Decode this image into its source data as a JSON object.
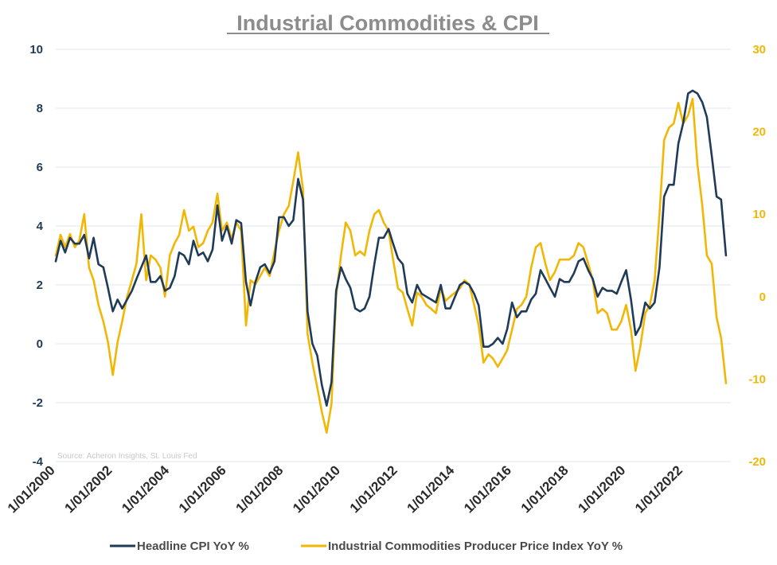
{
  "chart_data": {
    "type": "line",
    "title": "Industrial Commodities & CPI",
    "source": "Source: Acheron Insights, St. Louis Fed",
    "colors": {
      "cpi": "#1f3b57",
      "commodities": "#f2b705",
      "grid": "#e3e8ee"
    },
    "x_range": [
      2000.0,
      2023.67
    ],
    "x_ticks": [
      {
        "value": 2000,
        "label": "1/01/2000"
      },
      {
        "value": 2002,
        "label": "1/01/2002"
      },
      {
        "value": 2004,
        "label": "1/01/2004"
      },
      {
        "value": 2006,
        "label": "1/01/2006"
      },
      {
        "value": 2008,
        "label": "1/01/2008"
      },
      {
        "value": 2010,
        "label": "1/01/2010"
      },
      {
        "value": 2012,
        "label": "1/01/2012"
      },
      {
        "value": 2014,
        "label": "1/01/2014"
      },
      {
        "value": 2016,
        "label": "1/01/2016"
      },
      {
        "value": 2018,
        "label": "1/01/2018"
      },
      {
        "value": 2020,
        "label": "1/01/2020"
      },
      {
        "value": 2022,
        "label": "1/01/2022"
      }
    ],
    "y_left": {
      "range": [
        -4,
        10
      ],
      "ticks": [
        "-4",
        "-2",
        "0",
        "2",
        "4",
        "6",
        "8",
        "10"
      ]
    },
    "y_right": {
      "range": [
        -20,
        30
      ],
      "ticks": [
        "-20",
        "-10",
        "0",
        "10",
        "20",
        "30"
      ]
    },
    "grid": true,
    "legend_position": "bottom",
    "series": [
      {
        "name": "Headline CPI YoY %",
        "axis": "left",
        "points": [
          [
            2000.0,
            2.8
          ],
          [
            2000.17,
            3.5
          ],
          [
            2000.33,
            3.1
          ],
          [
            2000.5,
            3.6
          ],
          [
            2000.67,
            3.4
          ],
          [
            2000.83,
            3.4
          ],
          [
            2001.0,
            3.7
          ],
          [
            2001.17,
            2.9
          ],
          [
            2001.33,
            3.6
          ],
          [
            2001.5,
            2.7
          ],
          [
            2001.67,
            2.6
          ],
          [
            2001.83,
            1.9
          ],
          [
            2002.0,
            1.1
          ],
          [
            2002.17,
            1.5
          ],
          [
            2002.33,
            1.2
          ],
          [
            2002.5,
            1.5
          ],
          [
            2002.67,
            1.8
          ],
          [
            2002.83,
            2.2
          ],
          [
            2003.0,
            2.6
          ],
          [
            2003.17,
            3.0
          ],
          [
            2003.33,
            2.1
          ],
          [
            2003.5,
            2.1
          ],
          [
            2003.67,
            2.3
          ],
          [
            2003.83,
            1.8
          ],
          [
            2004.0,
            1.9
          ],
          [
            2004.17,
            2.3
          ],
          [
            2004.33,
            3.1
          ],
          [
            2004.5,
            3.0
          ],
          [
            2004.67,
            2.7
          ],
          [
            2004.83,
            3.5
          ],
          [
            2005.0,
            3.0
          ],
          [
            2005.17,
            3.1
          ],
          [
            2005.33,
            2.8
          ],
          [
            2005.5,
            3.2
          ],
          [
            2005.67,
            4.7
          ],
          [
            2005.83,
            3.5
          ],
          [
            2006.0,
            4.0
          ],
          [
            2006.17,
            3.4
          ],
          [
            2006.33,
            4.2
          ],
          [
            2006.5,
            4.1
          ],
          [
            2006.67,
            2.1
          ],
          [
            2006.83,
            1.3
          ],
          [
            2007.0,
            2.1
          ],
          [
            2007.17,
            2.6
          ],
          [
            2007.33,
            2.7
          ],
          [
            2007.5,
            2.4
          ],
          [
            2007.67,
            2.8
          ],
          [
            2007.83,
            4.3
          ],
          [
            2008.0,
            4.3
          ],
          [
            2008.17,
            4.0
          ],
          [
            2008.33,
            4.2
          ],
          [
            2008.5,
            5.6
          ],
          [
            2008.67,
            4.9
          ],
          [
            2008.83,
            1.1
          ],
          [
            2009.0,
            0.0
          ],
          [
            2009.17,
            -0.4
          ],
          [
            2009.33,
            -1.4
          ],
          [
            2009.5,
            -2.1
          ],
          [
            2009.67,
            -1.3
          ],
          [
            2009.83,
            1.8
          ],
          [
            2010.0,
            2.6
          ],
          [
            2010.17,
            2.2
          ],
          [
            2010.33,
            1.9
          ],
          [
            2010.5,
            1.2
          ],
          [
            2010.67,
            1.1
          ],
          [
            2010.83,
            1.2
          ],
          [
            2011.0,
            1.6
          ],
          [
            2011.17,
            2.7
          ],
          [
            2011.33,
            3.6
          ],
          [
            2011.5,
            3.6
          ],
          [
            2011.67,
            3.9
          ],
          [
            2011.83,
            3.4
          ],
          [
            2012.0,
            2.9
          ],
          [
            2012.17,
            2.7
          ],
          [
            2012.33,
            1.7
          ],
          [
            2012.5,
            1.4
          ],
          [
            2012.67,
            2.0
          ],
          [
            2012.83,
            1.7
          ],
          [
            2013.0,
            1.6
          ],
          [
            2013.17,
            1.5
          ],
          [
            2013.33,
            1.4
          ],
          [
            2013.5,
            2.0
          ],
          [
            2013.67,
            1.2
          ],
          [
            2013.83,
            1.2
          ],
          [
            2014.0,
            1.6
          ],
          [
            2014.17,
            2.0
          ],
          [
            2014.33,
            2.1
          ],
          [
            2014.5,
            2.0
          ],
          [
            2014.67,
            1.7
          ],
          [
            2014.83,
            1.3
          ],
          [
            2015.0,
            -0.1
          ],
          [
            2015.17,
            -0.1
          ],
          [
            2015.33,
            0.0
          ],
          [
            2015.5,
            0.2
          ],
          [
            2015.67,
            0.0
          ],
          [
            2015.83,
            0.5
          ],
          [
            2016.0,
            1.4
          ],
          [
            2016.17,
            0.9
          ],
          [
            2016.33,
            1.1
          ],
          [
            2016.5,
            1.1
          ],
          [
            2016.67,
            1.5
          ],
          [
            2016.83,
            1.7
          ],
          [
            2017.0,
            2.5
          ],
          [
            2017.17,
            2.2
          ],
          [
            2017.33,
            1.9
          ],
          [
            2017.5,
            1.6
          ],
          [
            2017.67,
            2.2
          ],
          [
            2017.83,
            2.1
          ],
          [
            2018.0,
            2.1
          ],
          [
            2018.17,
            2.4
          ],
          [
            2018.33,
            2.8
          ],
          [
            2018.5,
            2.9
          ],
          [
            2018.67,
            2.5
          ],
          [
            2018.83,
            2.2
          ],
          [
            2019.0,
            1.6
          ],
          [
            2019.17,
            1.9
          ],
          [
            2019.33,
            1.8
          ],
          [
            2019.5,
            1.8
          ],
          [
            2019.67,
            1.7
          ],
          [
            2019.83,
            2.1
          ],
          [
            2020.0,
            2.5
          ],
          [
            2020.17,
            1.5
          ],
          [
            2020.33,
            0.3
          ],
          [
            2020.5,
            0.6
          ],
          [
            2020.67,
            1.4
          ],
          [
            2020.83,
            1.2
          ],
          [
            2021.0,
            1.4
          ],
          [
            2021.17,
            2.6
          ],
          [
            2021.33,
            5.0
          ],
          [
            2021.5,
            5.4
          ],
          [
            2021.67,
            5.4
          ],
          [
            2021.83,
            6.8
          ],
          [
            2022.0,
            7.5
          ],
          [
            2022.17,
            8.5
          ],
          [
            2022.33,
            8.6
          ],
          [
            2022.5,
            8.5
          ],
          [
            2022.67,
            8.2
          ],
          [
            2022.83,
            7.7
          ],
          [
            2023.0,
            6.4
          ],
          [
            2023.17,
            5.0
          ],
          [
            2023.33,
            4.9
          ],
          [
            2023.5,
            3.0
          ]
        ]
      },
      {
        "name": "Industrial Commodities Producer Price Index YoY %",
        "axis": "right",
        "points": [
          [
            2000.0,
            5.0
          ],
          [
            2000.17,
            7.5
          ],
          [
            2000.33,
            6.0
          ],
          [
            2000.5,
            7.6
          ],
          [
            2000.67,
            6.0
          ],
          [
            2000.83,
            6.8
          ],
          [
            2001.0,
            10.0
          ],
          [
            2001.17,
            3.5
          ],
          [
            2001.33,
            2.0
          ],
          [
            2001.5,
            -1.0
          ],
          [
            2001.67,
            -3.0
          ],
          [
            2001.83,
            -5.5
          ],
          [
            2002.0,
            -9.5
          ],
          [
            2002.17,
            -5.5
          ],
          [
            2002.33,
            -3.0
          ],
          [
            2002.5,
            0.0
          ],
          [
            2002.67,
            2.0
          ],
          [
            2002.83,
            4.0
          ],
          [
            2003.0,
            10.0
          ],
          [
            2003.17,
            2.0
          ],
          [
            2003.33,
            5.0
          ],
          [
            2003.5,
            4.5
          ],
          [
            2003.67,
            3.5
          ],
          [
            2003.83,
            0.0
          ],
          [
            2004.0,
            5.0
          ],
          [
            2004.17,
            6.5
          ],
          [
            2004.33,
            7.5
          ],
          [
            2004.5,
            10.5
          ],
          [
            2004.67,
            8.0
          ],
          [
            2004.83,
            8.5
          ],
          [
            2005.0,
            6.0
          ],
          [
            2005.17,
            6.5
          ],
          [
            2005.33,
            8.0
          ],
          [
            2005.5,
            9.0
          ],
          [
            2005.67,
            12.5
          ],
          [
            2005.83,
            8.0
          ],
          [
            2006.0,
            9.0
          ],
          [
            2006.17,
            7.0
          ],
          [
            2006.33,
            9.0
          ],
          [
            2006.5,
            8.0
          ],
          [
            2006.67,
            -3.5
          ],
          [
            2006.83,
            2.0
          ],
          [
            2007.0,
            1.5
          ],
          [
            2007.17,
            2.5
          ],
          [
            2007.33,
            3.5
          ],
          [
            2007.5,
            2.5
          ],
          [
            2007.67,
            5.5
          ],
          [
            2007.83,
            8.0
          ],
          [
            2008.0,
            10.0
          ],
          [
            2008.17,
            11.0
          ],
          [
            2008.33,
            14.0
          ],
          [
            2008.5,
            17.5
          ],
          [
            2008.67,
            13.0
          ],
          [
            2008.83,
            -4.5
          ],
          [
            2009.0,
            -8.0
          ],
          [
            2009.17,
            -11.0
          ],
          [
            2009.33,
            -14.0
          ],
          [
            2009.5,
            -16.5
          ],
          [
            2009.67,
            -13.0
          ],
          [
            2009.83,
            0.0
          ],
          [
            2010.0,
            5.0
          ],
          [
            2010.17,
            9.0
          ],
          [
            2010.33,
            8.0
          ],
          [
            2010.5,
            5.0
          ],
          [
            2010.67,
            5.5
          ],
          [
            2010.83,
            5.0
          ],
          [
            2011.0,
            8.0
          ],
          [
            2011.17,
            10.0
          ],
          [
            2011.33,
            10.5
          ],
          [
            2011.5,
            9.0
          ],
          [
            2011.67,
            8.0
          ],
          [
            2011.83,
            4.5
          ],
          [
            2012.0,
            1.0
          ],
          [
            2012.17,
            0.5
          ],
          [
            2012.33,
            -1.5
          ],
          [
            2012.5,
            -3.5
          ],
          [
            2012.67,
            0.5
          ],
          [
            2012.83,
            0.0
          ],
          [
            2013.0,
            -1.0
          ],
          [
            2013.17,
            -1.5
          ],
          [
            2013.33,
            -2.0
          ],
          [
            2013.5,
            1.0
          ],
          [
            2013.67,
            -0.5
          ],
          [
            2013.83,
            0.0
          ],
          [
            2014.0,
            0.5
          ],
          [
            2014.17,
            1.0
          ],
          [
            2014.33,
            2.0
          ],
          [
            2014.5,
            1.5
          ],
          [
            2014.67,
            -1.0
          ],
          [
            2014.83,
            -3.5
          ],
          [
            2015.0,
            -8.0
          ],
          [
            2015.17,
            -7.0
          ],
          [
            2015.33,
            -7.5
          ],
          [
            2015.5,
            -8.5
          ],
          [
            2015.67,
            -7.5
          ],
          [
            2015.83,
            -6.5
          ],
          [
            2016.0,
            -4.0
          ],
          [
            2016.17,
            -1.5
          ],
          [
            2016.33,
            -1.0
          ],
          [
            2016.5,
            0.0
          ],
          [
            2016.67,
            3.5
          ],
          [
            2016.83,
            6.0
          ],
          [
            2017.0,
            6.5
          ],
          [
            2017.17,
            4.0
          ],
          [
            2017.33,
            2.0
          ],
          [
            2017.5,
            3.0
          ],
          [
            2017.67,
            4.5
          ],
          [
            2017.83,
            4.5
          ],
          [
            2018.0,
            4.5
          ],
          [
            2018.17,
            5.0
          ],
          [
            2018.33,
            6.5
          ],
          [
            2018.5,
            6.0
          ],
          [
            2018.67,
            4.0
          ],
          [
            2018.83,
            2.0
          ],
          [
            2019.0,
            -2.0
          ],
          [
            2019.17,
            -1.5
          ],
          [
            2019.33,
            -2.0
          ],
          [
            2019.5,
            -4.0
          ],
          [
            2019.67,
            -4.0
          ],
          [
            2019.83,
            -3.0
          ],
          [
            2020.0,
            -1.0
          ],
          [
            2020.17,
            -4.0
          ],
          [
            2020.33,
            -9.0
          ],
          [
            2020.5,
            -6.0
          ],
          [
            2020.67,
            -2.0
          ],
          [
            2020.83,
            -1.0
          ],
          [
            2021.0,
            2.0
          ],
          [
            2021.17,
            10.0
          ],
          [
            2021.33,
            19.0
          ],
          [
            2021.5,
            20.5
          ],
          [
            2021.67,
            21.0
          ],
          [
            2021.83,
            23.5
          ],
          [
            2022.0,
            21.0
          ],
          [
            2022.17,
            22.0
          ],
          [
            2022.33,
            24.0
          ],
          [
            2022.5,
            16.0
          ],
          [
            2022.67,
            11.0
          ],
          [
            2022.83,
            5.0
          ],
          [
            2023.0,
            4.0
          ],
          [
            2023.17,
            -2.5
          ],
          [
            2023.33,
            -5.0
          ],
          [
            2023.5,
            -10.5
          ]
        ]
      }
    ]
  }
}
